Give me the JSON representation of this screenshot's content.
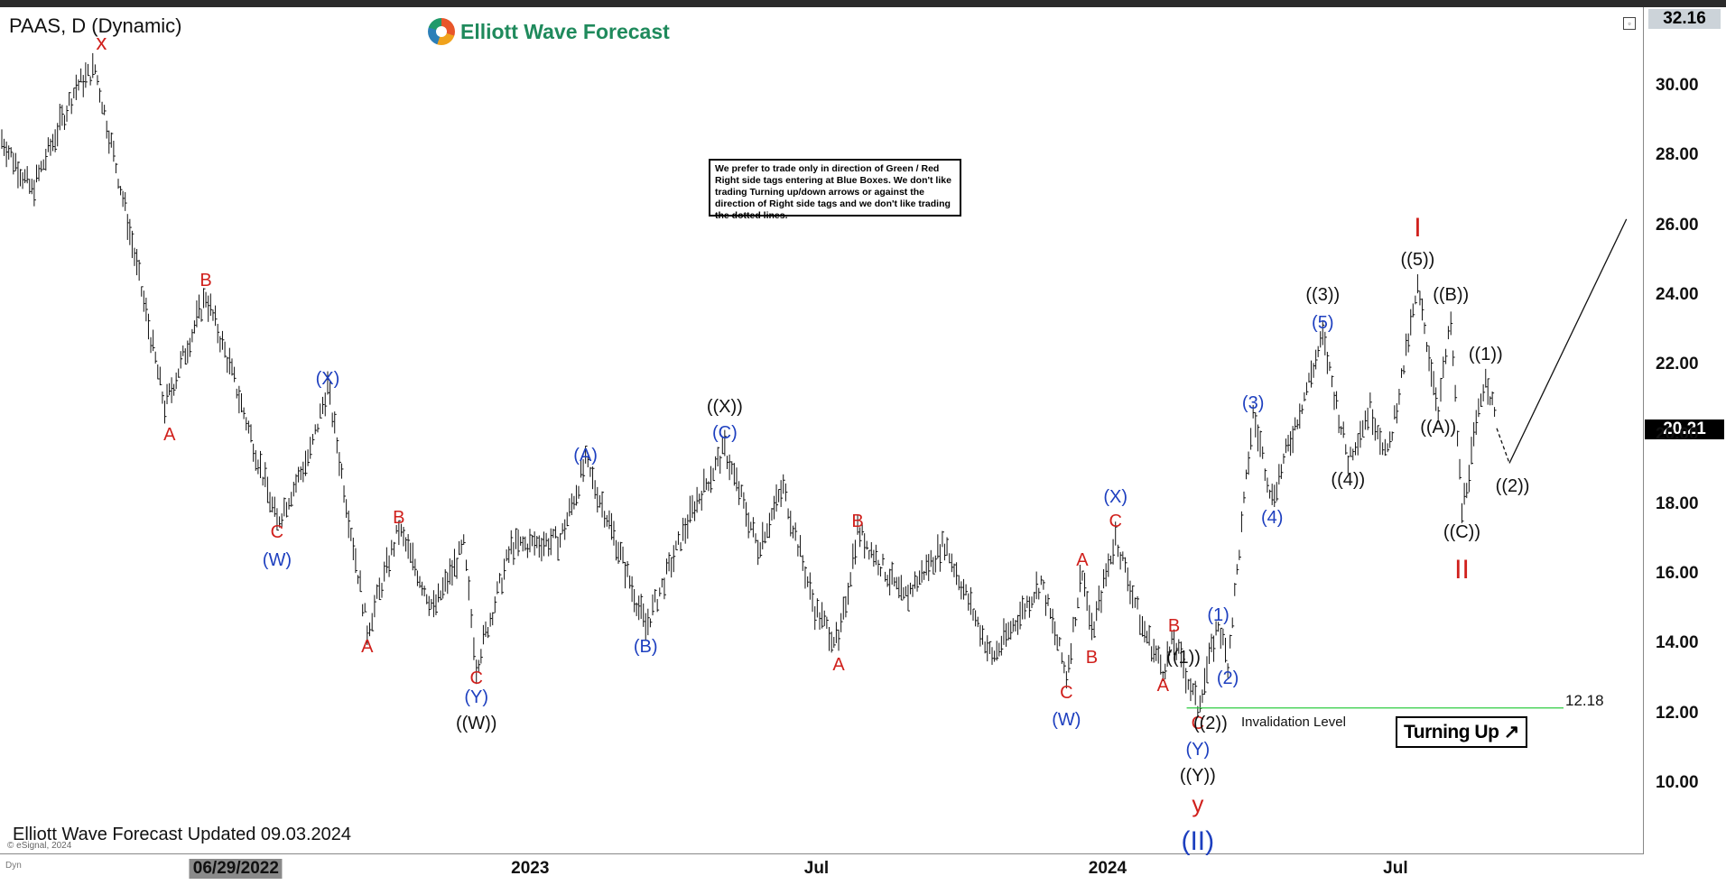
{
  "branding": {
    "logo_text": "Elliott Wave Forecast"
  },
  "notice": {
    "text": "We prefer to trade only in direction of Green / Red Right side tags entering at Blue Boxes. We don't like trading Turning up/down arrows or against the direction of Right side tags and we don't like trading the dotted lines."
  },
  "badge": {
    "label": "Turning Up",
    "arrow": "↗"
  },
  "footer": {
    "updated": "Elliott Wave Forecast Updated 09.03.2024",
    "copyright": "© eSignal, 2024",
    "dyn": "Dyn"
  },
  "colors": {
    "red": "#d0201c",
    "blue": "#1d3fbf",
    "black": "#111111",
    "invalidation": "#2ecc40"
  },
  "chart_data": {
    "type": "bar",
    "title": "PAAS, D (Dynamic)",
    "high_price_text": "32.16",
    "last_price_text": "20.21",
    "ylim": [
      8.0,
      32.4
    ],
    "y_ticks": [
      "10.00",
      "12.00",
      "14.00",
      "16.00",
      "18.00",
      "20.00",
      "22.00",
      "24.00",
      "26.00",
      "28.00",
      "30.00"
    ],
    "x_ticks": [
      {
        "label": "06/29/2022",
        "date": "2022-06-29",
        "highlight": true
      },
      {
        "label": "2023",
        "date": "2023-01-01"
      },
      {
        "label": "Jul",
        "date": "2023-07-01"
      },
      {
        "label": "2024",
        "date": "2024-01-01"
      },
      {
        "label": "Jul",
        "date": "2024-07-01"
      }
    ],
    "invalidation": {
      "label": "Invalidation Level",
      "value": 12.18,
      "value_text": "12.18",
      "from": "2024-02-20",
      "to": "2024-12-01"
    },
    "price_path": [
      [
        "2022-02-01",
        28.5
      ],
      [
        "2022-02-20",
        27.0
      ],
      [
        "2022-03-20",
        30.0
      ],
      [
        "2022-04-01",
        30.5
      ],
      [
        "2022-04-20",
        26.5
      ],
      [
        "2022-05-15",
        20.8
      ],
      [
        "2022-06-10",
        24.0
      ],
      [
        "2022-06-25",
        22.0
      ],
      [
        "2022-07-25",
        17.5
      ],
      [
        "2022-08-15",
        19.5
      ],
      [
        "2022-08-26",
        21.4
      ],
      [
        "2022-09-20",
        14.4
      ],
      [
        "2022-10-10",
        17.3
      ],
      [
        "2022-11-01",
        15.0
      ],
      [
        "2022-11-20",
        16.8
      ],
      [
        "2022-11-28",
        13.4
      ],
      [
        "2022-12-20",
        16.8
      ],
      [
        "2023-01-20",
        17.0
      ],
      [
        "2023-02-05",
        19.2
      ],
      [
        "2023-02-20",
        17.5
      ],
      [
        "2023-03-15",
        14.5
      ],
      [
        "2023-04-15",
        18.0
      ],
      [
        "2023-05-04",
        19.6
      ],
      [
        "2023-05-25",
        16.8
      ],
      [
        "2023-06-10",
        18.5
      ],
      [
        "2023-06-30",
        15.0
      ],
      [
        "2023-07-15",
        14.0
      ],
      [
        "2023-07-27",
        17.3
      ],
      [
        "2023-08-25",
        15.3
      ],
      [
        "2023-09-20",
        16.9
      ],
      [
        "2023-10-20",
        13.6
      ],
      [
        "2023-11-20",
        15.8
      ],
      [
        "2023-12-06",
        13.1
      ],
      [
        "2023-12-16",
        16.2
      ],
      [
        "2023-12-22",
        14.3
      ],
      [
        "2024-01-06",
        17.1
      ],
      [
        "2024-01-23",
        14.5
      ],
      [
        "2024-02-05",
        13.3
      ],
      [
        "2024-02-12",
        14.1
      ],
      [
        "2024-02-27",
        12.2
      ],
      [
        "2024-03-11",
        14.6
      ],
      [
        "2024-03-17",
        13.5
      ],
      [
        "2024-04-02",
        20.6
      ],
      [
        "2024-04-14",
        18.2
      ],
      [
        "2024-05-16",
        22.8
      ],
      [
        "2024-06-01",
        19.3
      ],
      [
        "2024-06-15",
        20.8
      ],
      [
        "2024-06-26",
        19.4
      ],
      [
        "2024-07-15",
        24.2
      ],
      [
        "2024-07-28",
        20.8
      ],
      [
        "2024-08-05",
        23.2
      ],
      [
        "2024-08-12",
        17.8
      ],
      [
        "2024-08-27",
        21.8
      ],
      [
        "2024-09-03",
        20.2
      ]
    ],
    "projection": [
      [
        "2024-09-03",
        20.2
      ],
      [
        "2024-09-11",
        19.2
      ],
      [
        "2024-11-24",
        26.2
      ]
    ],
    "wave_labels": [
      {
        "text": "x",
        "date": "2022-04-05",
        "price": 31.2,
        "color": "red",
        "size": 24
      },
      {
        "text": "B",
        "date": "2022-06-10",
        "price": 24.4,
        "color": "red",
        "size": 20
      },
      {
        "text": "A",
        "date": "2022-05-18",
        "price": 20.0,
        "color": "red",
        "size": 20
      },
      {
        "text": "(X)",
        "date": "2022-08-26",
        "price": 21.6,
        "color": "blue",
        "size": 20
      },
      {
        "text": "C",
        "date": "2022-07-25",
        "price": 17.2,
        "color": "red",
        "size": 20
      },
      {
        "text": "(W)",
        "date": "2022-07-25",
        "price": 16.4,
        "color": "blue",
        "size": 20
      },
      {
        "text": "A",
        "date": "2022-09-20",
        "price": 13.9,
        "color": "red",
        "size": 20
      },
      {
        "text": "B",
        "date": "2022-10-10",
        "price": 17.6,
        "color": "red",
        "size": 20
      },
      {
        "text": "C",
        "date": "2022-11-28",
        "price": 13.0,
        "color": "red",
        "size": 20
      },
      {
        "text": "(Y)",
        "date": "2022-11-28",
        "price": 12.45,
        "color": "blue",
        "size": 20
      },
      {
        "text": "((W))",
        "date": "2022-11-28",
        "price": 11.7,
        "color": "black",
        "size": 20
      },
      {
        "text": "(A)",
        "date": "2023-02-05",
        "price": 19.4,
        "color": "blue",
        "size": 20
      },
      {
        "text": "(B)",
        "date": "2023-03-15",
        "price": 13.9,
        "color": "blue",
        "size": 20
      },
      {
        "text": "((X))",
        "date": "2023-05-04",
        "price": 20.8,
        "color": "black",
        "size": 20
      },
      {
        "text": "(C)",
        "date": "2023-05-04",
        "price": 20.05,
        "color": "blue",
        "size": 20
      },
      {
        "text": "B",
        "date": "2023-07-27",
        "price": 17.5,
        "color": "red",
        "size": 20
      },
      {
        "text": "A",
        "date": "2023-07-15",
        "price": 13.4,
        "color": "red",
        "size": 20
      },
      {
        "text": "C",
        "date": "2023-12-06",
        "price": 12.6,
        "color": "red",
        "size": 20
      },
      {
        "text": "(W)",
        "date": "2023-12-06",
        "price": 11.8,
        "color": "blue",
        "size": 20
      },
      {
        "text": "A",
        "date": "2023-12-16",
        "price": 16.4,
        "color": "red",
        "size": 20
      },
      {
        "text": "B",
        "date": "2023-12-22",
        "price": 13.6,
        "color": "red",
        "size": 20
      },
      {
        "text": "(X)",
        "date": "2024-01-06",
        "price": 18.2,
        "color": "blue",
        "size": 20
      },
      {
        "text": "C",
        "date": "2024-01-06",
        "price": 17.5,
        "color": "red",
        "size": 20
      },
      {
        "text": "B",
        "date": "2024-02-12",
        "price": 14.5,
        "color": "red",
        "size": 20
      },
      {
        "text": "A",
        "date": "2024-02-05",
        "price": 12.8,
        "color": "red",
        "size": 20
      },
      {
        "text": "((1))",
        "date": "2024-02-18",
        "price": 13.6,
        "color": "black",
        "size": 20
      },
      {
        "text": "C",
        "date": "2024-02-27",
        "price": 11.7,
        "color": "red",
        "size": 20
      },
      {
        "text": "(Y)",
        "date": "2024-02-27",
        "price": 10.95,
        "color": "blue",
        "size": 20
      },
      {
        "text": "((Y))",
        "date": "2024-02-27",
        "price": 10.2,
        "color": "black",
        "size": 20
      },
      {
        "text": "y",
        "date": "2024-02-27",
        "price": 9.4,
        "color": "red",
        "size": 26
      },
      {
        "text": "(II)",
        "date": "2024-02-27",
        "price": 8.3,
        "color": "blue",
        "size": 30
      },
      {
        "text": "((2))",
        "date": "2024-03-06",
        "price": 11.7,
        "color": "black",
        "size": 20
      },
      {
        "text": "(1)",
        "date": "2024-03-11",
        "price": 14.8,
        "color": "blue",
        "size": 20
      },
      {
        "text": "(2)",
        "date": "2024-03-17",
        "price": 13.0,
        "color": "blue",
        "size": 20
      },
      {
        "text": "(3)",
        "date": "2024-04-02",
        "price": 20.9,
        "color": "blue",
        "size": 20
      },
      {
        "text": "(4)",
        "date": "2024-04-14",
        "price": 17.6,
        "color": "blue",
        "size": 20
      },
      {
        "text": "((3))",
        "date": "2024-05-16",
        "price": 24.0,
        "color": "black",
        "size": 20
      },
      {
        "text": "(5)",
        "date": "2024-05-16",
        "price": 23.2,
        "color": "blue",
        "size": 20
      },
      {
        "text": "((4))",
        "date": "2024-06-01",
        "price": 18.7,
        "color": "black",
        "size": 20
      },
      {
        "text": "I",
        "date": "2024-07-15",
        "price": 25.9,
        "color": "red",
        "size": 30
      },
      {
        "text": "((5))",
        "date": "2024-07-15",
        "price": 25.0,
        "color": "black",
        "size": 20
      },
      {
        "text": "((B))",
        "date": "2024-08-05",
        "price": 24.0,
        "color": "black",
        "size": 20
      },
      {
        "text": "((A))",
        "date": "2024-07-28",
        "price": 20.2,
        "color": "black",
        "size": 20
      },
      {
        "text": "((C))",
        "date": "2024-08-12",
        "price": 17.2,
        "color": "black",
        "size": 20
      },
      {
        "text": "II",
        "date": "2024-08-12",
        "price": 16.1,
        "color": "red",
        "size": 30
      },
      {
        "text": "((1))",
        "date": "2024-08-27",
        "price": 22.3,
        "color": "black",
        "size": 20
      },
      {
        "text": "((2))",
        "date": "2024-09-13",
        "price": 18.5,
        "color": "black",
        "size": 20
      }
    ]
  }
}
